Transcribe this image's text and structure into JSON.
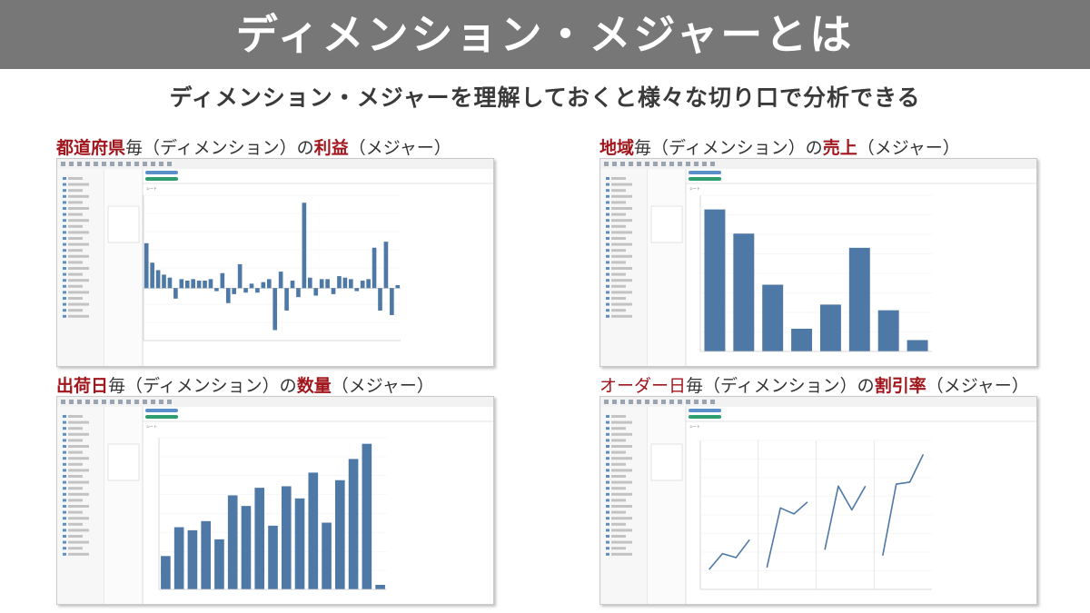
{
  "header": {
    "title": "ディメンション・メジャーとは"
  },
  "subtitle": "ディメンション・メジャーを理解しておくと様々な切り口で分析できる",
  "panels": [
    {
      "id": "prefecture-profit",
      "title_dimension": "都道府県",
      "title_middle": "毎（ディメンション）の",
      "title_measure": "利益",
      "title_suffix": "（メジャー）",
      "sheet_label": "シート",
      "chart_data": {
        "type": "bar",
        "values": [
          30,
          17,
          12,
          9,
          7,
          -7,
          6,
          5,
          6,
          5,
          5,
          6,
          -2,
          10,
          -10,
          -4,
          16,
          -3,
          3,
          -3,
          4,
          6,
          -28,
          11,
          -15,
          5,
          -6,
          57,
          7,
          -5,
          6,
          6,
          -4,
          8,
          7,
          6,
          -2,
          5,
          6,
          27,
          -15,
          31,
          -18,
          2
        ],
        "ylim": [
          -35,
          62
        ]
      }
    },
    {
      "id": "region-sales",
      "title_dimension": "地域",
      "title_middle": "毎（ディメンション）の",
      "title_measure": "売上",
      "title_suffix": "（メジャー）",
      "sheet_label": "シート",
      "chart_data": {
        "type": "bar",
        "values": [
          100,
          83,
          47,
          16,
          33,
          73,
          29,
          8
        ],
        "ylim": [
          0,
          110
        ]
      }
    },
    {
      "id": "ship-date-quantity",
      "title_dimension": "出荷日",
      "title_middle": "毎（ディメンション）の",
      "title_measure": "数量",
      "title_suffix": "（メジャー）",
      "sheet_label": "シート",
      "chart_data": {
        "type": "bar",
        "values": [
          22,
          41,
          39,
          45,
          33,
          62,
          55,
          67,
          42,
          68,
          60,
          77,
          44,
          72,
          86,
          96,
          3
        ],
        "ylim": [
          0,
          100
        ]
      }
    },
    {
      "id": "order-date-discount",
      "title_dimension": "オーダー日",
      "title_middle": "毎（ディメンション）の",
      "title_measure": "割引率",
      "title_suffix": "（メジャー）",
      "sheet_label": "シート",
      "chart_data": {
        "type": "line",
        "series": [
          {
            "values": [
              10,
              18,
              16,
              25
            ]
          },
          {
            "values": [
              11,
              41,
              38,
              44
            ]
          },
          {
            "values": [
              20,
              52,
              40,
              52
            ]
          },
          {
            "values": [
              17,
              53,
              54,
              68
            ]
          }
        ],
        "ylim": [
          0,
          75
        ]
      }
    }
  ],
  "colors": {
    "bar": "#4e79a7",
    "keyword": "#a0161c",
    "title_bg": "#777777"
  }
}
